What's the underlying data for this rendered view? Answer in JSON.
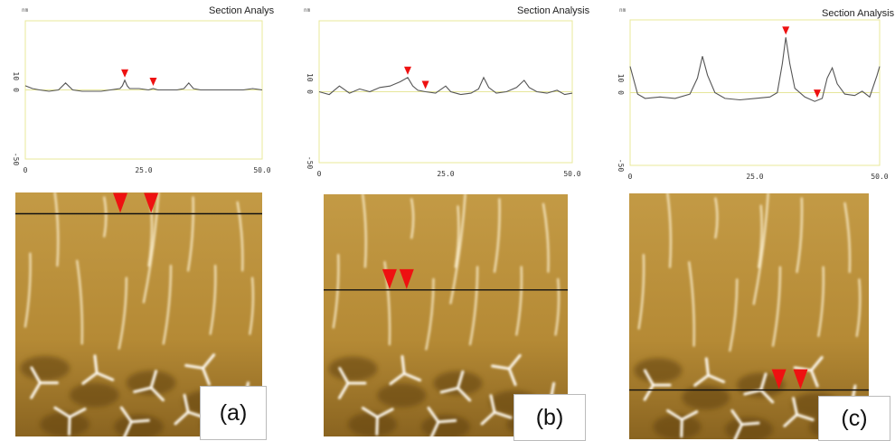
{
  "figure": {
    "panels": [
      {
        "id": "a",
        "label": "(a)",
        "plot_title": "Section Analys",
        "y_unit": "nm",
        "cursor_row_fraction": 0.087,
        "marker_x_fractions": [
          0.425,
          0.55
        ]
      },
      {
        "id": "b",
        "label": "(b)",
        "plot_title": "Section Analysis",
        "y_unit": "nm",
        "cursor_row_fraction": 0.395,
        "marker_x_fractions": [
          0.27,
          0.34
        ]
      },
      {
        "id": "c",
        "label": "(c)",
        "plot_title": "Section Analysis",
        "y_unit": "nm",
        "cursor_row_fraction": 0.8,
        "marker_x_fractions": [
          0.625,
          0.715
        ]
      }
    ],
    "colors": {
      "plot_border": "#e8e89a",
      "profile_line": "#555555",
      "marker": "#ee1111",
      "afm_base": "#b58a35",
      "zero_line": "#e6e69a"
    }
  },
  "chart_data": [
    {
      "type": "line",
      "title": "Section Analys",
      "xlabel": "",
      "ylabel": "nm",
      "xlim": [
        0,
        50
      ],
      "ylim": [
        -50,
        50
      ],
      "x_ticks": [
        "0",
        "25.0",
        "50.0"
      ],
      "y_ticks": [
        "10",
        "0",
        "-50"
      ],
      "grid": false,
      "series": [
        {
          "values": [
            [
              0,
              3
            ],
            [
              1.5,
              1
            ],
            [
              3,
              0
            ],
            [
              5,
              -1
            ],
            [
              7,
              0
            ],
            [
              8.5,
              5
            ],
            [
              10,
              0
            ],
            [
              12,
              -1
            ],
            [
              14,
              -1
            ],
            [
              16,
              -1
            ],
            [
              18,
              0
            ],
            [
              20,
              1
            ],
            [
              20.5,
              3
            ],
            [
              21,
              7
            ],
            [
              21.5,
              3
            ],
            [
              22,
              1
            ],
            [
              24,
              1
            ],
            [
              26,
              0
            ],
            [
              27,
              1
            ],
            [
              28,
              0
            ],
            [
              30,
              0
            ],
            [
              32,
              0
            ],
            [
              33.5,
              1
            ],
            [
              34.5,
              5
            ],
            [
              35.5,
              1
            ],
            [
              37,
              0
            ],
            [
              40,
              0
            ],
            [
              43,
              0
            ],
            [
              46,
              0
            ],
            [
              48,
              1
            ],
            [
              50,
              0
            ]
          ]
        }
      ],
      "markers_x": [
        21,
        27
      ]
    },
    {
      "type": "line",
      "title": "Section Analysis",
      "xlabel": "",
      "ylabel": "nm",
      "xlim": [
        0,
        50
      ],
      "ylim": [
        -50,
        50
      ],
      "x_ticks": [
        "0",
        "25.0",
        "50.0"
      ],
      "y_ticks": [
        "10",
        "0",
        "-50"
      ],
      "grid": false,
      "series": [
        {
          "values": [
            [
              0,
              0
            ],
            [
              2,
              -2
            ],
            [
              4,
              4
            ],
            [
              6,
              -1
            ],
            [
              8,
              2
            ],
            [
              10,
              0
            ],
            [
              12,
              3
            ],
            [
              14,
              4
            ],
            [
              16,
              7
            ],
            [
              17.5,
              10
            ],
            [
              18.5,
              4
            ],
            [
              19.5,
              1
            ],
            [
              21,
              0
            ],
            [
              23,
              -1
            ],
            [
              25,
              4
            ],
            [
              26,
              0
            ],
            [
              28,
              -2
            ],
            [
              30,
              -1
            ],
            [
              31.5,
              2
            ],
            [
              32.5,
              10
            ],
            [
              33.5,
              3
            ],
            [
              35,
              -1
            ],
            [
              37,
              0
            ],
            [
              39,
              3
            ],
            [
              40.5,
              8
            ],
            [
              41.5,
              3
            ],
            [
              43,
              0
            ],
            [
              45,
              -1
            ],
            [
              47,
              1
            ],
            [
              48.5,
              -2
            ],
            [
              50,
              -1
            ]
          ]
        }
      ],
      "markers_x": [
        17.5,
        21
      ]
    },
    {
      "type": "line",
      "title": "Section Analysis",
      "xlabel": "",
      "ylabel": "nm",
      "xlim": [
        0,
        50
      ],
      "ylim": [
        -50,
        50
      ],
      "x_ticks": [
        "0",
        "25.0",
        "50.0"
      ],
      "y_ticks": [
        "10",
        "0",
        "-50"
      ],
      "grid": false,
      "series": [
        {
          "values": [
            [
              0,
              18
            ],
            [
              1.5,
              -1
            ],
            [
              3,
              -4
            ],
            [
              6,
              -3
            ],
            [
              9,
              -4
            ],
            [
              12,
              -1
            ],
            [
              13.5,
              10
            ],
            [
              14.5,
              25
            ],
            [
              15.5,
              12
            ],
            [
              17,
              0
            ],
            [
              19,
              -4
            ],
            [
              22,
              -5
            ],
            [
              25,
              -4
            ],
            [
              28,
              -3
            ],
            [
              29.5,
              0
            ],
            [
              30.5,
              20
            ],
            [
              31.2,
              38
            ],
            [
              32,
              20
            ],
            [
              33,
              3
            ],
            [
              35,
              -3
            ],
            [
              37,
              -6
            ],
            [
              38.5,
              -4
            ],
            [
              39.5,
              10
            ],
            [
              40.5,
              17
            ],
            [
              41.5,
              6
            ],
            [
              43,
              -1
            ],
            [
              45,
              -2
            ],
            [
              46.5,
              1
            ],
            [
              48,
              -3
            ],
            [
              49.5,
              12
            ],
            [
              50,
              18
            ]
          ]
        }
      ],
      "markers_x": [
        31.2,
        37.5
      ]
    }
  ]
}
